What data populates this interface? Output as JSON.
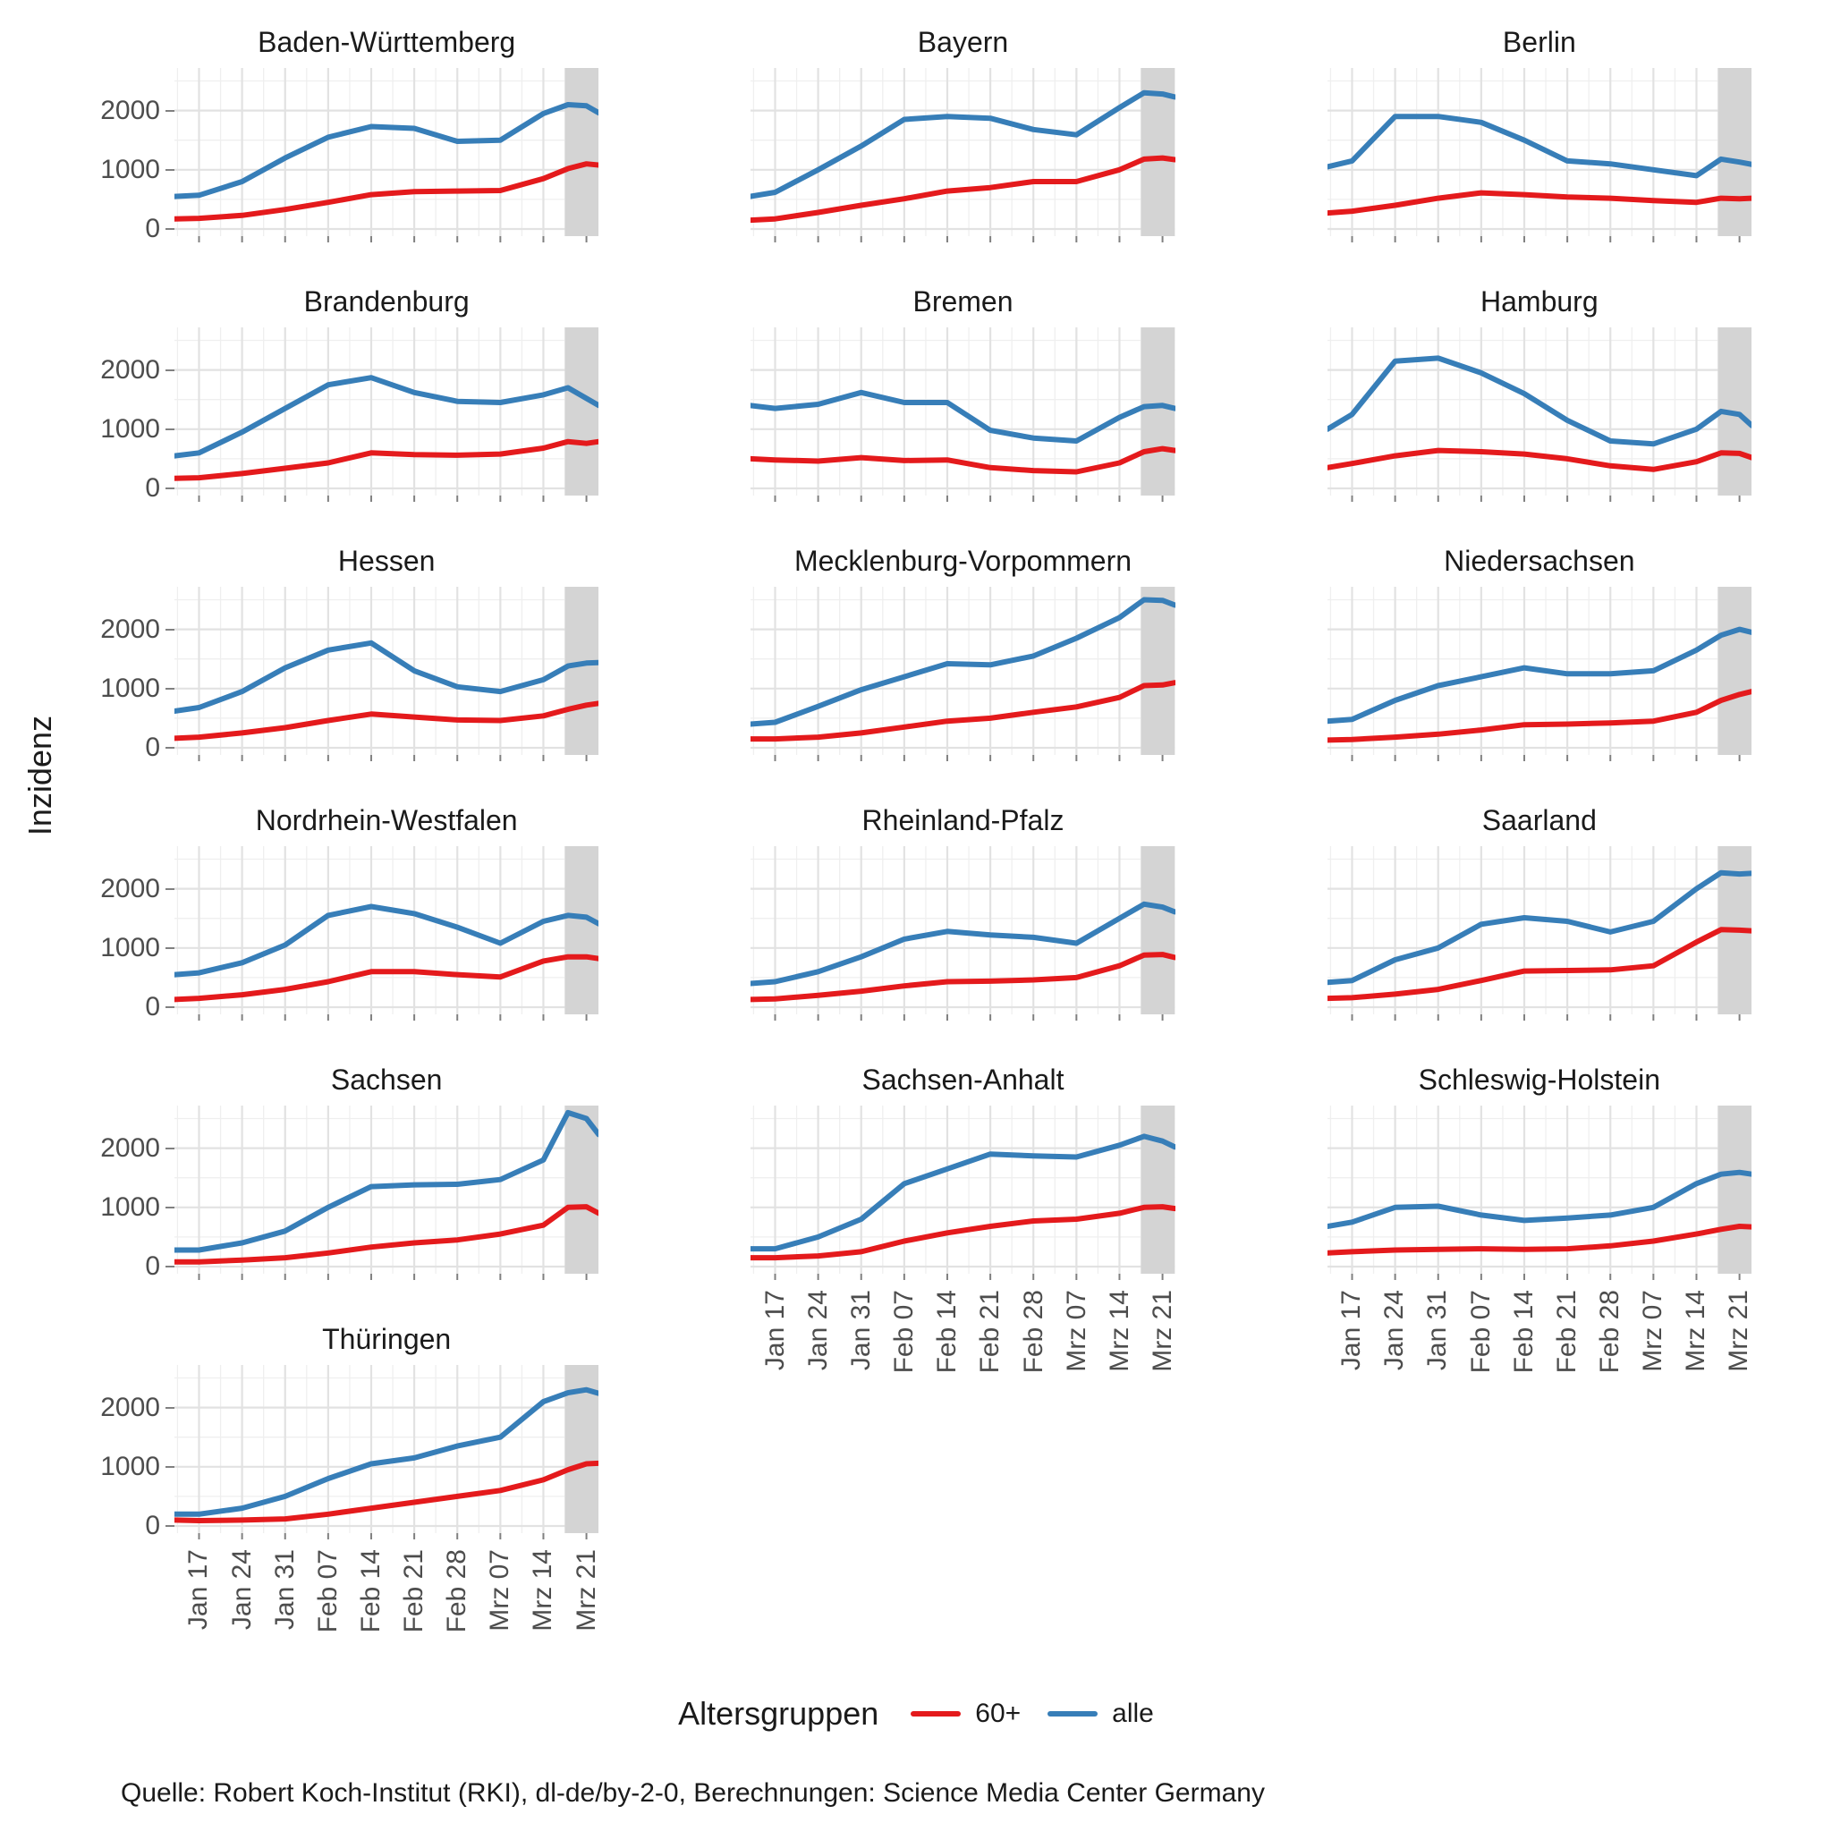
{
  "y_axis": {
    "title": "Inzidenz",
    "ticks": [
      {
        "label": "0",
        "value": 0
      },
      {
        "label": "1000",
        "value": 1000
      },
      {
        "label": "2000",
        "value": 2000
      }
    ]
  },
  "x_axis": {
    "ticks": [
      {
        "label": "Jan 17",
        "day": 4
      },
      {
        "label": "Jan 24",
        "day": 11
      },
      {
        "label": "Jan 31",
        "day": 18
      },
      {
        "label": "Feb 07",
        "day": 25
      },
      {
        "label": "Feb 14",
        "day": 32
      },
      {
        "label": "Feb 21",
        "day": 39
      },
      {
        "label": "Feb 28",
        "day": 46
      },
      {
        "label": "Mrz 07",
        "day": 53
      },
      {
        "label": "Mrz 14",
        "day": 60
      },
      {
        "label": "Mrz 21",
        "day": 67
      }
    ]
  },
  "legend": {
    "title": "Altersgruppen",
    "items": [
      {
        "label": "60+",
        "color": "#E41A1C"
      },
      {
        "label": "alle",
        "color": "#377EB8"
      }
    ]
  },
  "source": {
    "text": "Quelle: Robert Koch-Institut (RKI), dl-de/by-2-0, Berechnungen: Science Media Center Germany"
  },
  "colors": {
    "line_60plus": "#E41A1C",
    "line_alle": "#377EB8",
    "band": "#D4D4D4",
    "grid_major": "#E2E2E2",
    "grid_minor": "#EFEFEF",
    "axis_text": "#4D4D4D",
    "tick": "#808080"
  },
  "chart_data": {
    "type": "line",
    "title": "",
    "ylabel": "Inzidenz",
    "ylim": [
      0,
      2780
    ],
    "grid": true,
    "highlight_band_days": [
      63.5,
      69
    ],
    "x_days": [
      0,
      4,
      11,
      18,
      25,
      32,
      39,
      46,
      53,
      60,
      64,
      67,
      69
    ],
    "x_day_dates": [
      "Jan 13",
      "Jan 17",
      "Jan 24",
      "Jan 31",
      "Feb 07",
      "Feb 14",
      "Feb 21",
      "Feb 28",
      "Mrz 07",
      "Mrz 14",
      "Mrz 18",
      "Mrz 21",
      "Mrz 23"
    ],
    "series_names": [
      "60+",
      "alle"
    ],
    "facets": [
      {
        "title": "Baden-Württemberg",
        "row": 1,
        "col": 1,
        "y_axis": true,
        "x_axis": false,
        "alle": [
          550,
          570,
          800,
          1200,
          1550,
          1730,
          1700,
          1480,
          1500,
          1950,
          2100,
          2080,
          1960
        ],
        "60plus": [
          170,
          180,
          230,
          330,
          450,
          580,
          630,
          640,
          650,
          850,
          1020,
          1100,
          1080
        ]
      },
      {
        "title": "Bayern",
        "row": 1,
        "col": 2,
        "y_axis": false,
        "x_axis": false,
        "alle": [
          550,
          620,
          1000,
          1400,
          1850,
          1900,
          1870,
          1680,
          1590,
          2050,
          2300,
          2280,
          2230
        ],
        "60plus": [
          150,
          170,
          280,
          400,
          510,
          640,
          700,
          800,
          800,
          1000,
          1180,
          1200,
          1170
        ]
      },
      {
        "title": "Berlin",
        "row": 1,
        "col": 3,
        "y_axis": false,
        "x_axis": false,
        "alle": [
          1050,
          1150,
          1900,
          1900,
          1800,
          1500,
          1150,
          1100,
          1000,
          900,
          1180,
          1130,
          1090
        ],
        "60plus": [
          270,
          300,
          400,
          520,
          610,
          580,
          540,
          520,
          480,
          450,
          520,
          510,
          520
        ]
      },
      {
        "title": "Brandenburg",
        "row": 2,
        "col": 1,
        "y_axis": true,
        "x_axis": false,
        "alle": [
          550,
          600,
          950,
          1350,
          1750,
          1870,
          1620,
          1470,
          1450,
          1580,
          1700,
          1520,
          1400
        ],
        "60plus": [
          170,
          180,
          250,
          340,
          430,
          600,
          570,
          560,
          580,
          680,
          790,
          760,
          790
        ]
      },
      {
        "title": "Bremen",
        "row": 2,
        "col": 2,
        "y_axis": false,
        "x_axis": false,
        "alle": [
          1400,
          1350,
          1420,
          1620,
          1450,
          1450,
          980,
          850,
          800,
          1200,
          1380,
          1400,
          1350
        ],
        "60plus": [
          500,
          480,
          460,
          520,
          470,
          480,
          350,
          300,
          280,
          430,
          620,
          670,
          640
        ]
      },
      {
        "title": "Hamburg",
        "row": 2,
        "col": 3,
        "y_axis": false,
        "x_axis": false,
        "alle": [
          1000,
          1250,
          2150,
          2200,
          1950,
          1600,
          1150,
          800,
          750,
          1000,
          1300,
          1250,
          1060
        ],
        "60plus": [
          350,
          420,
          550,
          640,
          620,
          580,
          500,
          380,
          320,
          450,
          600,
          590,
          520
        ]
      },
      {
        "title": "Hessen",
        "row": 3,
        "col": 1,
        "y_axis": true,
        "x_axis": false,
        "alle": [
          620,
          680,
          950,
          1350,
          1650,
          1770,
          1300,
          1030,
          950,
          1150,
          1380,
          1430,
          1440
        ],
        "60plus": [
          160,
          180,
          250,
          340,
          460,
          570,
          520,
          470,
          460,
          540,
          650,
          720,
          750
        ]
      },
      {
        "title": "Mecklenburg-Vorpommern",
        "row": 3,
        "col": 2,
        "y_axis": false,
        "x_axis": false,
        "alle": [
          400,
          430,
          700,
          980,
          1200,
          1420,
          1400,
          1550,
          1850,
          2200,
          2500,
          2490,
          2410
        ],
        "60plus": [
          150,
          150,
          180,
          250,
          350,
          450,
          500,
          600,
          690,
          850,
          1050,
          1060,
          1100
        ]
      },
      {
        "title": "Niedersachsen",
        "row": 3,
        "col": 3,
        "y_axis": false,
        "x_axis": false,
        "alle": [
          450,
          480,
          800,
          1050,
          1200,
          1350,
          1250,
          1250,
          1300,
          1650,
          1900,
          2000,
          1950
        ],
        "60plus": [
          130,
          140,
          180,
          230,
          300,
          390,
          400,
          420,
          450,
          600,
          800,
          900,
          950
        ]
      },
      {
        "title": "Nordrhein-Westfalen",
        "row": 4,
        "col": 1,
        "y_axis": true,
        "x_axis": false,
        "alle": [
          550,
          580,
          750,
          1050,
          1550,
          1700,
          1580,
          1350,
          1080,
          1450,
          1550,
          1520,
          1410
        ],
        "60plus": [
          130,
          150,
          210,
          300,
          430,
          600,
          600,
          550,
          510,
          780,
          850,
          850,
          820
        ]
      },
      {
        "title": "Rheinland-Pfalz",
        "row": 4,
        "col": 2,
        "y_axis": false,
        "x_axis": false,
        "alle": [
          400,
          430,
          600,
          850,
          1150,
          1280,
          1220,
          1180,
          1080,
          1500,
          1740,
          1690,
          1610
        ],
        "60plus": [
          130,
          140,
          200,
          270,
          360,
          430,
          440,
          460,
          500,
          700,
          880,
          890,
          840
        ]
      },
      {
        "title": "Saarland",
        "row": 4,
        "col": 3,
        "y_axis": false,
        "x_axis": false,
        "alle": [
          420,
          450,
          800,
          1000,
          1400,
          1510,
          1450,
          1270,
          1450,
          2000,
          2270,
          2250,
          2260
        ],
        "60plus": [
          150,
          160,
          220,
          300,
          450,
          610,
          620,
          630,
          700,
          1100,
          1310,
          1300,
          1290
        ]
      },
      {
        "title": "Sachsen",
        "row": 5,
        "col": 1,
        "y_axis": true,
        "x_axis": false,
        "alle": [
          280,
          280,
          400,
          600,
          1000,
          1350,
          1380,
          1390,
          1470,
          1800,
          2600,
          2500,
          2230
        ],
        "60plus": [
          80,
          80,
          110,
          150,
          230,
          330,
          400,
          450,
          550,
          700,
          1000,
          1010,
          900
        ]
      },
      {
        "title": "Sachsen-Anhalt",
        "row": 5,
        "col": 2,
        "y_axis": false,
        "x_axis": true,
        "alle": [
          300,
          300,
          500,
          800,
          1400,
          1650,
          1900,
          1870,
          1850,
          2050,
          2200,
          2120,
          2020
        ],
        "60plus": [
          150,
          150,
          180,
          250,
          430,
          570,
          680,
          770,
          800,
          900,
          1000,
          1010,
          980
        ]
      },
      {
        "title": "Schleswig-Holstein",
        "row": 5,
        "col": 3,
        "y_axis": false,
        "x_axis": true,
        "alle": [
          680,
          750,
          1000,
          1020,
          870,
          780,
          820,
          870,
          1000,
          1400,
          1560,
          1590,
          1560
        ],
        "60plus": [
          230,
          250,
          280,
          290,
          300,
          290,
          300,
          350,
          430,
          550,
          630,
          680,
          670
        ]
      },
      {
        "title": "Thüringen",
        "row": 6,
        "col": 1,
        "y_axis": true,
        "x_axis": true,
        "alle": [
          200,
          200,
          300,
          500,
          800,
          1050,
          1150,
          1350,
          1500,
          2100,
          2250,
          2300,
          2240
        ],
        "60plus": [
          100,
          90,
          100,
          120,
          200,
          300,
          400,
          500,
          600,
          780,
          950,
          1050,
          1060
        ]
      }
    ]
  }
}
